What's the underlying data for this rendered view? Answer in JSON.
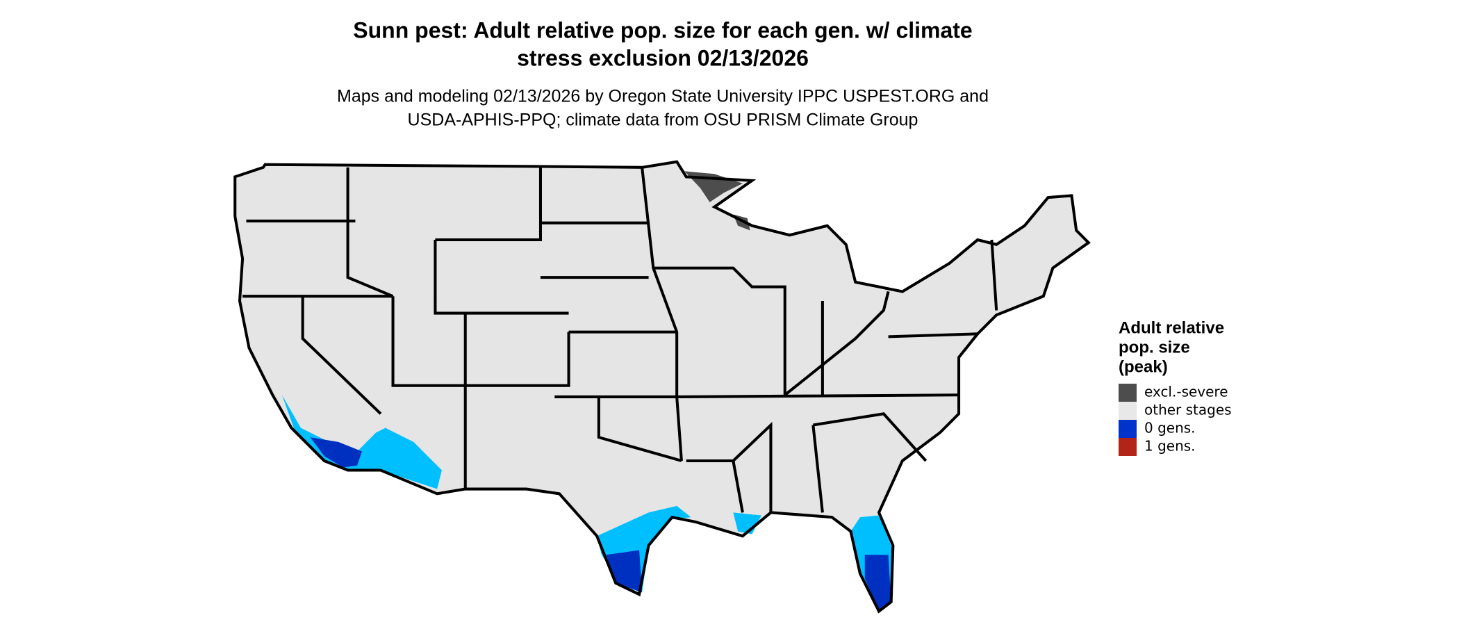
{
  "header": {
    "title": [
      "Sunn pest: Adult relative pop. size for each gen. w/ climate",
      "stress exclusion 02/13/2026"
    ],
    "subtitle": [
      "Maps and modeling 02/13/2026 by Oregon State University IPPC USPEST.ORG and",
      "USDA-APHIS-PPQ; climate data from OSU PRISM Climate Group"
    ]
  },
  "legend": {
    "title": [
      "Adult relative",
      "pop. size",
      "(peak)"
    ],
    "items": [
      {
        "label": "excl.-severe",
        "color": "#4d4d4d"
      },
      {
        "label": "other stages",
        "color": "#e8e8e8"
      },
      {
        "label": "0 gens.",
        "color": "#0033cc"
      },
      {
        "label": "1 gens.",
        "color": "#b22418"
      }
    ]
  }
}
